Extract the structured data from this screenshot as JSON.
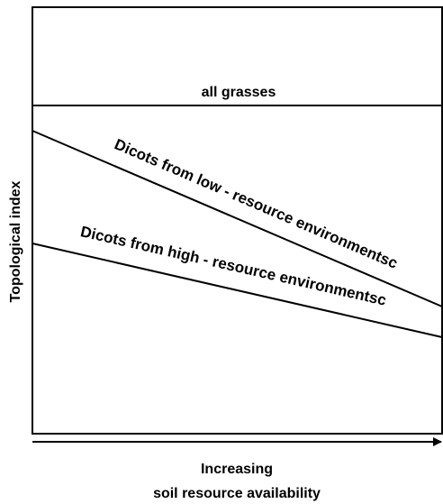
{
  "diagram": {
    "y_axis_label": "Topological index",
    "x_axis_label_line1": "Increasing",
    "x_axis_label_line2": "soil resource availability",
    "lines": [
      {
        "label": "all grasses"
      },
      {
        "label": "Dicots from low - resource environmentsc"
      },
      {
        "label": "Dicots from high - resource environmentsc"
      }
    ]
  }
}
